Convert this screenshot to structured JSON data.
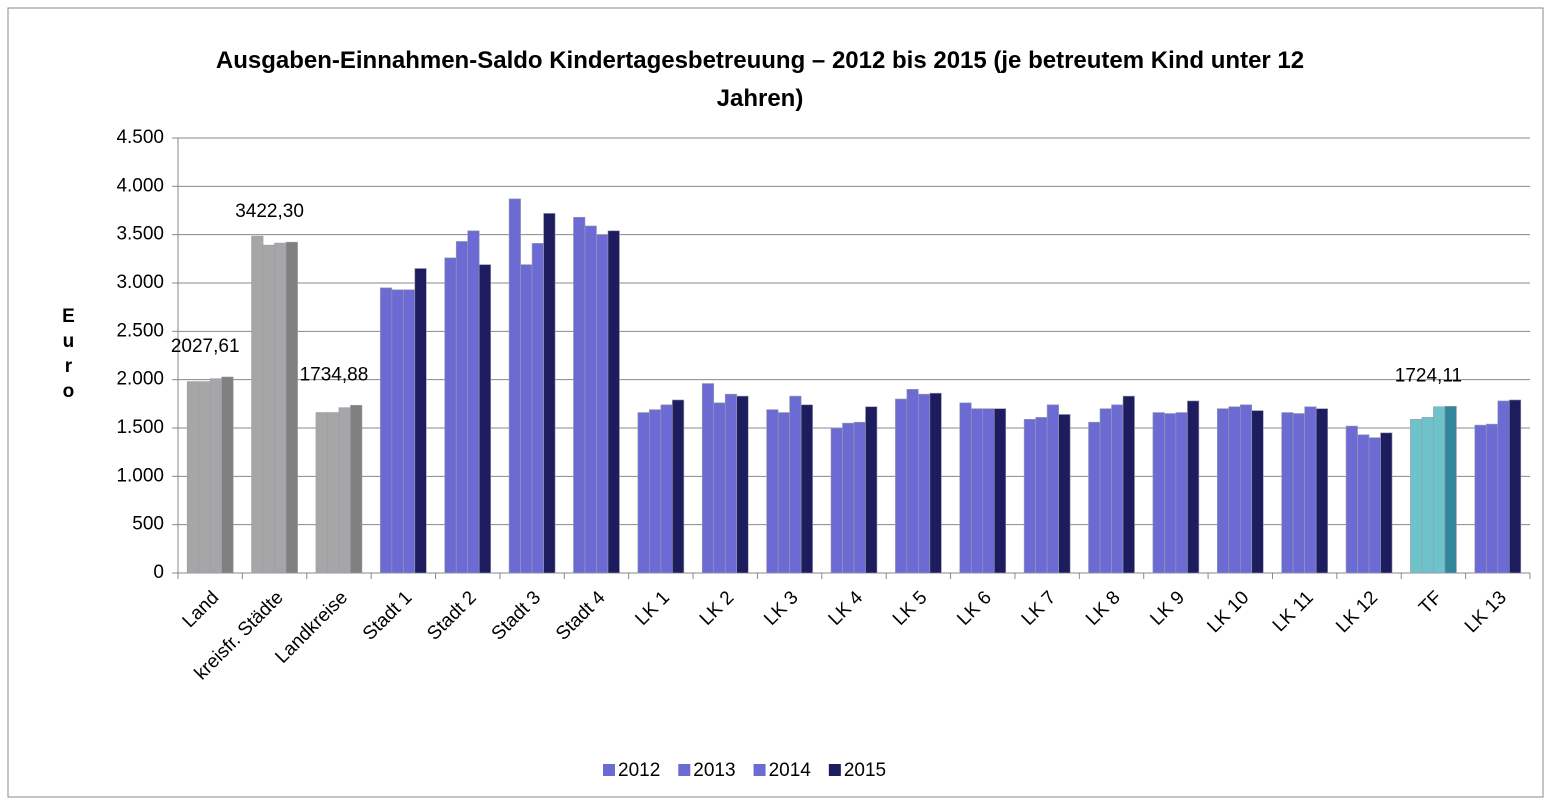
{
  "chart_data": {
    "type": "bar",
    "title": "Ausgaben-Einnahmen-Saldo Kindertagesbetreuung – 2012 bis 2015 (je betreutem Kind unter 12 Jahren)",
    "y_label": "Euro",
    "categories": [
      "Land",
      "kreisfr. Städte",
      "Landkreise",
      "Stadt 1",
      "Stadt 2",
      "Stadt 3",
      "Stadt 4",
      "LK 1",
      "LK 2",
      "LK 3",
      "LK 4",
      "LK 5",
      "LK 6",
      "LK 7",
      "LK 8",
      "LK 9",
      "LK 10",
      "LK 11",
      "LK 12",
      "TF",
      "LK 13"
    ],
    "series": [
      {
        "name": "2012",
        "color": "#6b6bd3",
        "colors": [
          "#a6a6a6",
          "#a6a6a6",
          "#a6a6a6",
          "#6b6bd3",
          "#6b6bd3",
          "#6b6bd3",
          "#6b6bd3",
          "#6b6bd3",
          "#6b6bd3",
          "#6b6bd3",
          "#6b6bd3",
          "#6b6bd3",
          "#6b6bd3",
          "#6b6bd3",
          "#6b6bd3",
          "#6b6bd3",
          "#6b6bd3",
          "#6b6bd3",
          "#6b6bd3",
          "#6cc3c9",
          "#6b6bd3"
        ],
        "values": [
          1980,
          3485,
          1660,
          2950,
          3260,
          3870,
          3680,
          1660,
          1960,
          1690,
          1500,
          1800,
          1760,
          1590,
          1560,
          1660,
          1700,
          1660,
          1520,
          1590,
          1530
        ]
      },
      {
        "name": "2013",
        "color": "#6b6bd3",
        "colors": [
          "#a6a6a6",
          "#a6a6a6",
          "#a6a6a6",
          "#6b6bd3",
          "#6b6bd3",
          "#6b6bd3",
          "#6b6bd3",
          "#6b6bd3",
          "#6b6bd3",
          "#6b6bd3",
          "#6b6bd3",
          "#6b6bd3",
          "#6b6bd3",
          "#6b6bd3",
          "#6b6bd3",
          "#6b6bd3",
          "#6b6bd3",
          "#6b6bd3",
          "#6b6bd3",
          "#6cc3c9",
          "#6b6bd3"
        ],
        "values": [
          1980,
          3392,
          1660,
          2930,
          3430,
          3190,
          3590,
          1690,
          1760,
          1660,
          1550,
          1900,
          1700,
          1610,
          1700,
          1650,
          1720,
          1650,
          1430,
          1610,
          1540
        ]
      },
      {
        "name": "2014",
        "color": "#6b6bd3",
        "colors": [
          "#a6a6a6",
          "#a6a6a6",
          "#a6a6a6",
          "#6b6bd3",
          "#6b6bd3",
          "#6b6bd3",
          "#6b6bd3",
          "#6b6bd3",
          "#6b6bd3",
          "#6b6bd3",
          "#6b6bd3",
          "#6b6bd3",
          "#6b6bd3",
          "#6b6bd3",
          "#6b6bd3",
          "#6b6bd3",
          "#6b6bd3",
          "#6b6bd3",
          "#6b6bd3",
          "#6cc3c9",
          "#6b6bd3"
        ],
        "values": [
          2010,
          3413,
          1710,
          2930,
          3540,
          3410,
          3500,
          1740,
          1850,
          1830,
          1560,
          1850,
          1700,
          1740,
          1740,
          1660,
          1740,
          1720,
          1400,
          1720,
          1780
        ]
      },
      {
        "name": "2015",
        "color": "#1c1c5e",
        "colors": [
          "#808080",
          "#808080",
          "#808080",
          "#1c1c5e",
          "#1c1c5e",
          "#1c1c5e",
          "#1c1c5e",
          "#1c1c5e",
          "#1c1c5e",
          "#1c1c5e",
          "#1c1c5e",
          "#1c1c5e",
          "#1c1c5e",
          "#1c1c5e",
          "#1c1c5e",
          "#1c1c5e",
          "#1c1c5e",
          "#1c1c5e",
          "#1c1c5e",
          "#31869b",
          "#1c1c5e"
        ],
        "values": [
          2027.61,
          3422.3,
          1734.88,
          3150,
          3190,
          3720,
          3540,
          1790,
          1830,
          1740,
          1720,
          1860,
          1700,
          1640,
          1830,
          1780,
          1680,
          1700,
          1450,
          1724.11,
          1790
        ],
        "value_labels": [
          "2027,61",
          "3422,30",
          "1734,88",
          null,
          null,
          null,
          null,
          null,
          null,
          null,
          null,
          null,
          null,
          null,
          null,
          null,
          null,
          null,
          null,
          "1724,11",
          null
        ]
      }
    ],
    "ylim": [
      0,
      4500
    ],
    "yticks": [
      0,
      500,
      {
        "value": 1000,
        "label": "1.000"
      },
      {
        "value": 1500,
        "label": "1.500"
      },
      {
        "value": 2000,
        "label": "2.000"
      },
      {
        "value": 2500,
        "label": "2.500"
      },
      {
        "value": 3000,
        "label": "3.000"
      },
      {
        "value": 3500,
        "label": "3.500"
      },
      {
        "value": 4000,
        "label": "4.000"
      },
      {
        "value": 4500,
        "label": "4.500"
      }
    ],
    "grid": true,
    "legend": "bottom"
  }
}
